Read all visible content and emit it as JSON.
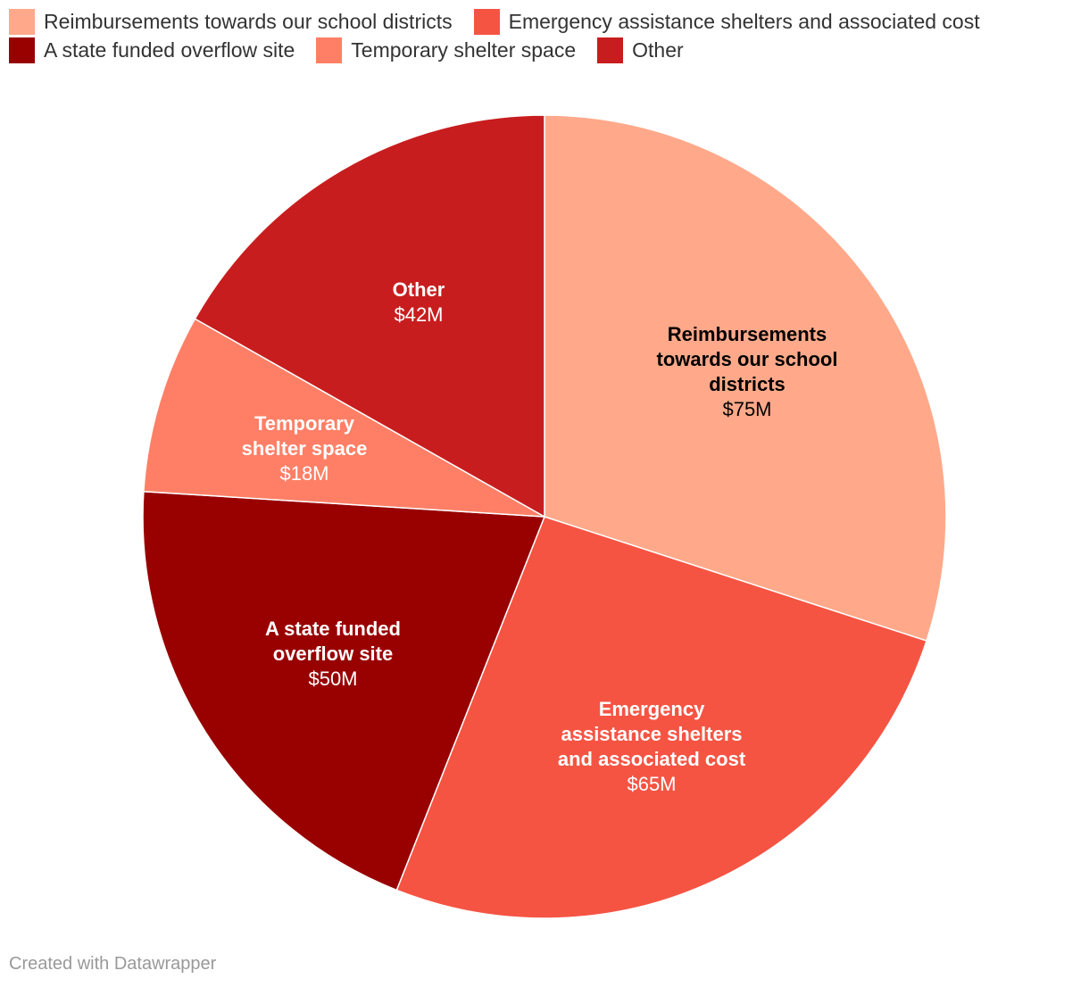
{
  "chart_data": {
    "type": "pie",
    "title": "",
    "slices": [
      {
        "label": "Reimbursements towards our school districts",
        "value": 75,
        "value_label": "$75M",
        "color": "#ffa98a",
        "label_color": "#000000"
      },
      {
        "label": "Emergency assistance shelters and associated cost",
        "value": 65,
        "value_label": "$65M",
        "color": "#f55443",
        "label_color": "#ffffff"
      },
      {
        "label": "A state funded overflow site",
        "value": 50,
        "value_label": "$50M",
        "color": "#990000",
        "label_color": "#ffffff"
      },
      {
        "label": "Temporary shelter space",
        "value": 18,
        "value_label": "$18M",
        "color": "#ff7f66",
        "label_color": "#ffffff"
      },
      {
        "label": "Other",
        "value": 42,
        "value_label": "$42M",
        "color": "#c81d1e",
        "label_color": "#ffffff"
      }
    ],
    "legend_placement": "top-left"
  },
  "footer": {
    "credit": "Created with Datawrapper"
  }
}
